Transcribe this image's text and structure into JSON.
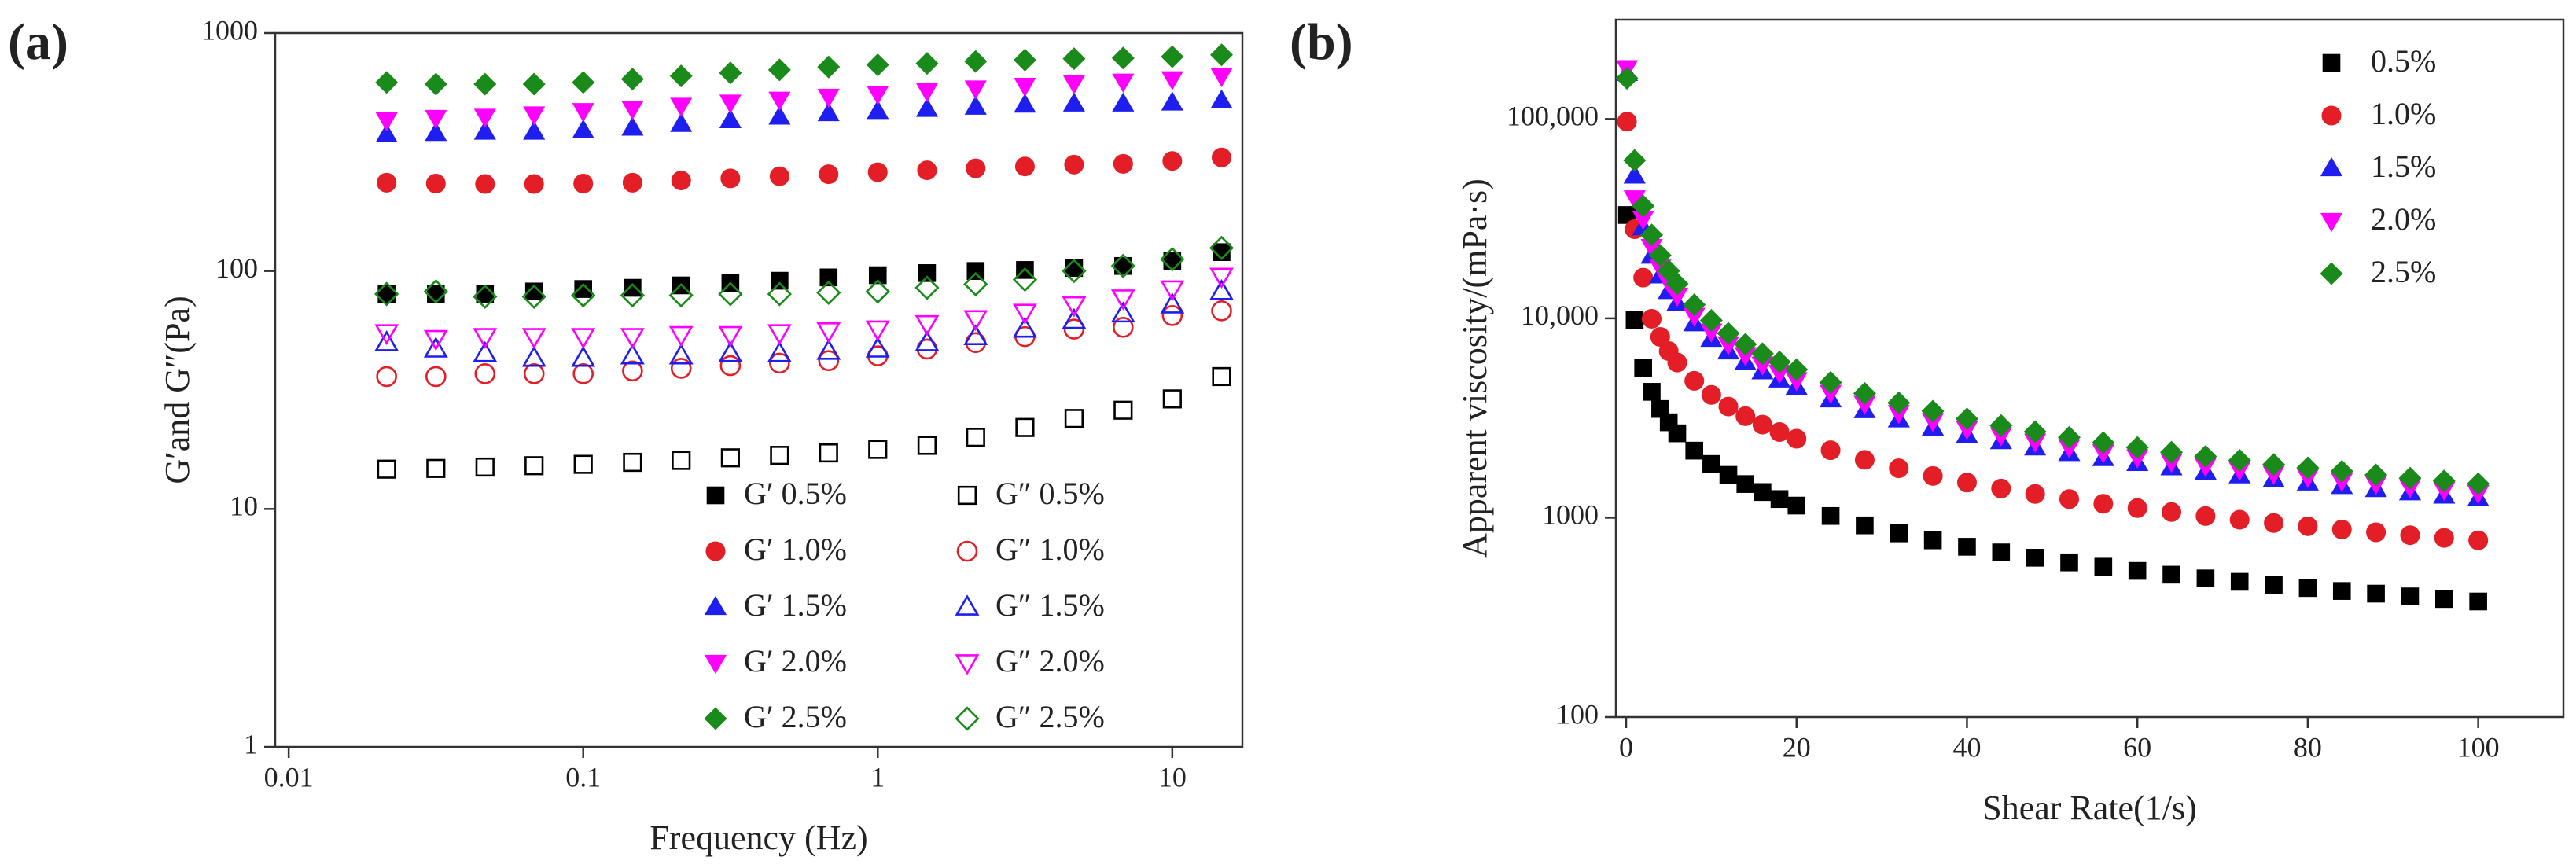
{
  "chart_data": [
    {
      "type": "scatter",
      "panel_label": "(a)",
      "x_label": "Frequency (Hz)",
      "y_label": "G′and G″(Pa)",
      "xscale": "log",
      "yscale": "log",
      "xlim": [
        0.009,
        17.3
      ],
      "ylim": [
        1,
        1000
      ],
      "xticks": [
        0.01,
        0.1,
        1,
        10
      ],
      "yticks": [
        1,
        10,
        100,
        1000
      ],
      "legend": "lower right",
      "x": [
        0.0215,
        0.0316,
        0.0464,
        0.0681,
        0.1,
        0.147,
        0.215,
        0.316,
        0.464,
        0.681,
        1,
        1.47,
        2.15,
        3.16,
        4.64,
        6.81,
        10,
        14.7
      ],
      "series": [
        {
          "name": "G′ 0.5%",
          "color": "#000000",
          "marker": "square",
          "filled": true,
          "values": [
            80,
            80,
            80,
            82,
            84,
            85,
            87,
            89,
            91,
            94,
            96,
            98,
            100,
            101,
            103,
            105,
            110,
            120
          ]
        },
        {
          "name": "G″ 0.5%",
          "color": "#000000",
          "marker": "square",
          "filled": false,
          "values": [
            14.7,
            14.8,
            15,
            15.2,
            15.4,
            15.7,
            16,
            16.4,
            16.8,
            17.2,
            17.8,
            18.5,
            20,
            22,
            24,
            26,
            29,
            36
          ]
        },
        {
          "name": "G′ 1.0%",
          "color": "#e41e26",
          "marker": "circle",
          "filled": true,
          "values": [
            235,
            233,
            232,
            232,
            233,
            235,
            240,
            245,
            250,
            255,
            260,
            265,
            270,
            275,
            280,
            282,
            290,
            300
          ]
        },
        {
          "name": "G″ 1.0%",
          "color": "#e41e26",
          "marker": "circle",
          "filled": false,
          "values": [
            36,
            36,
            37,
            37,
            37,
            38,
            39,
            40,
            41,
            42,
            44,
            47,
            50,
            53,
            57,
            58,
            65,
            68
          ]
        },
        {
          "name": "G′ 1.5%",
          "color": "#1e1ef0",
          "marker": "triangle-up",
          "filled": true,
          "values": [
            375,
            380,
            385,
            385,
            390,
            400,
            415,
            430,
            445,
            460,
            470,
            480,
            490,
            500,
            505,
            505,
            510,
            520
          ]
        },
        {
          "name": "G″ 1.5%",
          "color": "#1e1ef0",
          "marker": "triangle-up",
          "filled": false,
          "values": [
            50,
            47,
            45,
            43,
            43,
            44,
            44,
            45,
            45,
            46,
            47,
            50,
            53,
            57,
            62,
            66,
            72,
            82
          ]
        },
        {
          "name": "G′ 2.0%",
          "color": "#ff00ff",
          "marker": "triangle-down",
          "filled": true,
          "values": [
            430,
            440,
            445,
            455,
            470,
            480,
            495,
            510,
            525,
            540,
            555,
            570,
            585,
            600,
            615,
            625,
            640,
            660
          ]
        },
        {
          "name": "G″ 2.0%",
          "color": "#ff00ff",
          "marker": "triangle-down",
          "filled": false,
          "values": [
            55,
            52,
            53,
            53,
            53,
            53,
            54,
            54,
            55,
            56,
            57,
            60,
            63,
            67,
            72,
            77,
            84,
            95
          ]
        },
        {
          "name": "G′ 2.5%",
          "color": "#1a8a1a",
          "marker": "diamond",
          "filled": true,
          "values": [
            620,
            610,
            610,
            610,
            620,
            640,
            660,
            680,
            700,
            720,
            735,
            745,
            760,
            770,
            780,
            785,
            795,
            810
          ]
        },
        {
          "name": "G″ 2.5%",
          "color": "#1a8a1a",
          "marker": "diamond",
          "filled": false,
          "values": [
            80,
            82,
            78,
            78,
            79,
            79,
            79,
            80,
            80,
            81,
            82,
            85,
            88,
            92,
            100,
            105,
            112,
            125
          ]
        }
      ]
    },
    {
      "type": "scatter",
      "panel_label": "(b)",
      "x_label": "Shear Rate(1/s)",
      "y_label": "Apparent viscosity/(mPa·s)",
      "xscale": "linear",
      "yscale": "log",
      "xlim": [
        -1.2,
        110
      ],
      "ylim": [
        100,
        315000
      ],
      "xticks": [
        0,
        20,
        40,
        60,
        80,
        100
      ],
      "yticks": [
        100,
        1000,
        {
          "value": 10000,
          "label": "10,000"
        },
        {
          "value": 100000,
          "label": "100,000"
        }
      ],
      "legend": "upper right",
      "x": [
        0.1,
        1,
        2,
        3,
        4,
        5,
        6,
        8,
        10,
        12,
        14,
        16,
        18,
        20,
        24,
        28,
        32,
        36,
        40,
        44,
        48,
        52,
        56,
        60,
        64,
        68,
        72,
        76,
        80,
        84,
        88,
        92,
        96,
        100
      ],
      "series": [
        {
          "name": "0.5%",
          "color": "#000000",
          "marker": "square",
          "filled": true,
          "values": [
            33000,
            9800,
            5650,
            4280,
            3510,
            3010,
            2650,
            2170,
            1860,
            1640,
            1475,
            1345,
            1240,
            1150,
            1020,
            915,
            835,
            770,
            715,
            670,
            630,
            597,
            568,
            541,
            518,
            496,
            477,
            459,
            444,
            429,
            416,
            403,
            391,
            380
          ]
        },
        {
          "name": "1.0%",
          "color": "#e41e26",
          "marker": "circle",
          "filled": true,
          "values": [
            97000,
            28000,
            16000,
            9950,
            8070,
            6850,
            6000,
            4860,
            4130,
            3610,
            3230,
            2930,
            2690,
            2490,
            2180,
            1950,
            1770,
            1620,
            1500,
            1400,
            1315,
            1240,
            1175,
            1117,
            1067,
            1019,
            977,
            940,
            906,
            873,
            845,
            817,
            792,
            770
          ]
        },
        {
          "name": "1.5%",
          "color": "#1e1ef0",
          "marker": "triangle-up",
          "filled": true,
          "values": [
            170000,
            52000,
            28600,
            20600,
            16400,
            13700,
            11900,
            9440,
            7890,
            6820,
            6030,
            5420,
            4930,
            4530,
            3920,
            3460,
            3110,
            2830,
            2600,
            2420,
            2250,
            2110,
            1990,
            1880,
            1790,
            1700,
            1630,
            1560,
            1500,
            1440,
            1390,
            1340,
            1290,
            1250
          ]
        },
        {
          "name": "2.0%",
          "color": "#ff00ff",
          "marker": "triangle-down",
          "filled": true,
          "values": [
            180000,
            40000,
            31600,
            22800,
            18000,
            15100,
            13000,
            10300,
            8590,
            7410,
            6550,
            5870,
            5330,
            4900,
            4230,
            3730,
            3350,
            3050,
            2790,
            2590,
            2410,
            2260,
            2130,
            2010,
            1910,
            1820,
            1740,
            1660,
            1600,
            1530,
            1480,
            1420,
            1380,
            1330
          ]
        },
        {
          "name": "2.5%",
          "color": "#1a8a1a",
          "marker": "diamond",
          "filled": true,
          "values": [
            160000,
            62000,
            36600,
            26200,
            20700,
            17300,
            14900,
            11700,
            9770,
            8410,
            7410,
            6650,
            6040,
            5530,
            4770,
            4200,
            3770,
            3420,
            3130,
            2900,
            2700,
            2530,
            2380,
            2250,
            2130,
            2030,
            1940,
            1850,
            1780,
            1710,
            1640,
            1580,
            1530,
            1480
          ]
        }
      ]
    }
  ]
}
